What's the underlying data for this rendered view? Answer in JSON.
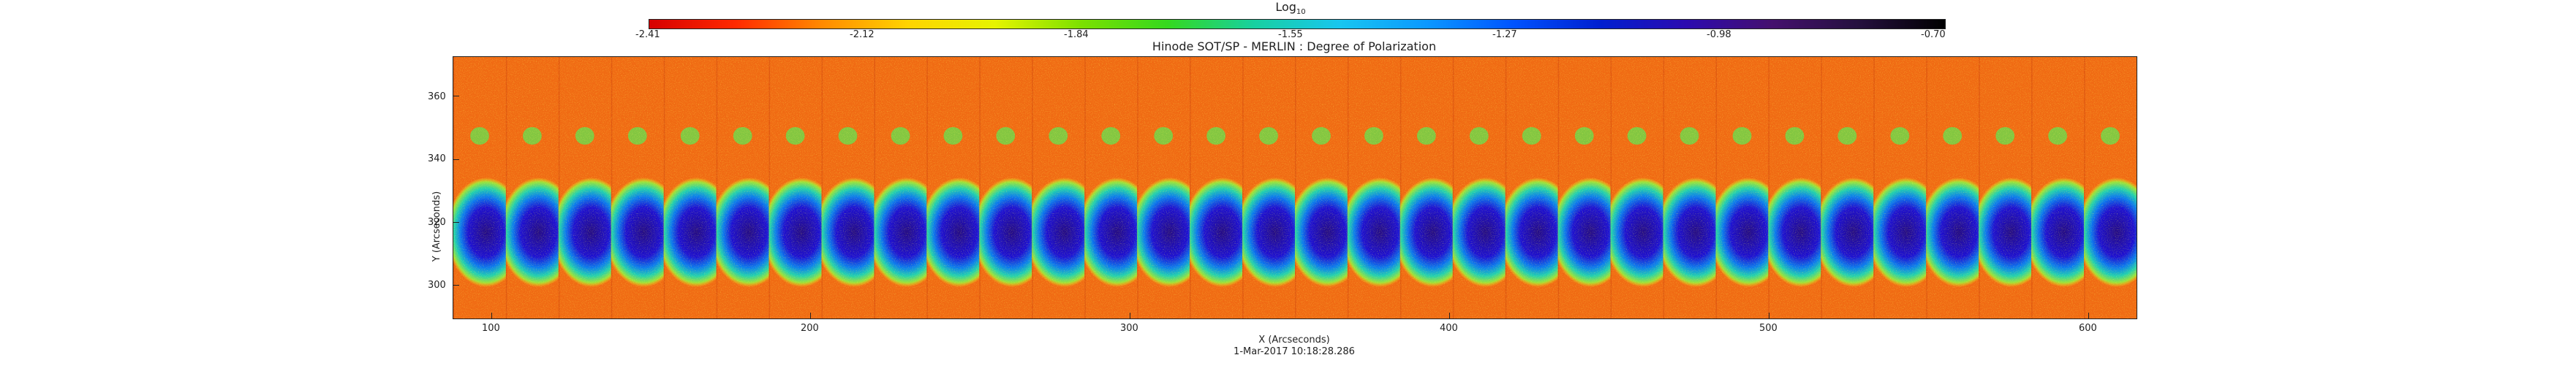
{
  "colorbar": {
    "title": "Log",
    "title_sub": "10",
    "ticks": [
      "-2.41",
      "-2.12",
      "-1.84",
      "-1.55",
      "-1.27",
      "-0.98",
      "-0.70"
    ],
    "colors": [
      "#d60000",
      "#ff2a00",
      "#ff8a00",
      "#ffd400",
      "#e6f400",
      "#7ce000",
      "#35d81f",
      "#18d0a0",
      "#18c6f0",
      "#0b98ff",
      "#0054ff",
      "#001fd0",
      "#2c0bb0",
      "#45106e",
      "#25103e",
      "#000000"
    ]
  },
  "plot": {
    "title": "Hinode SOT/SP - MERLIN : Degree of Polarization",
    "ylabel": "Y (Arcseconds)",
    "xlabel": "X (Arcseconds)",
    "timestamp": "1-Mar-2017 10:18:28.286",
    "xticks": [
      "100",
      "200",
      "300",
      "400",
      "500",
      "600"
    ],
    "yticks": [
      "360",
      "340",
      "320",
      "300"
    ]
  },
  "image": {
    "background": "#f06a13",
    "panel_count": 32
  }
}
